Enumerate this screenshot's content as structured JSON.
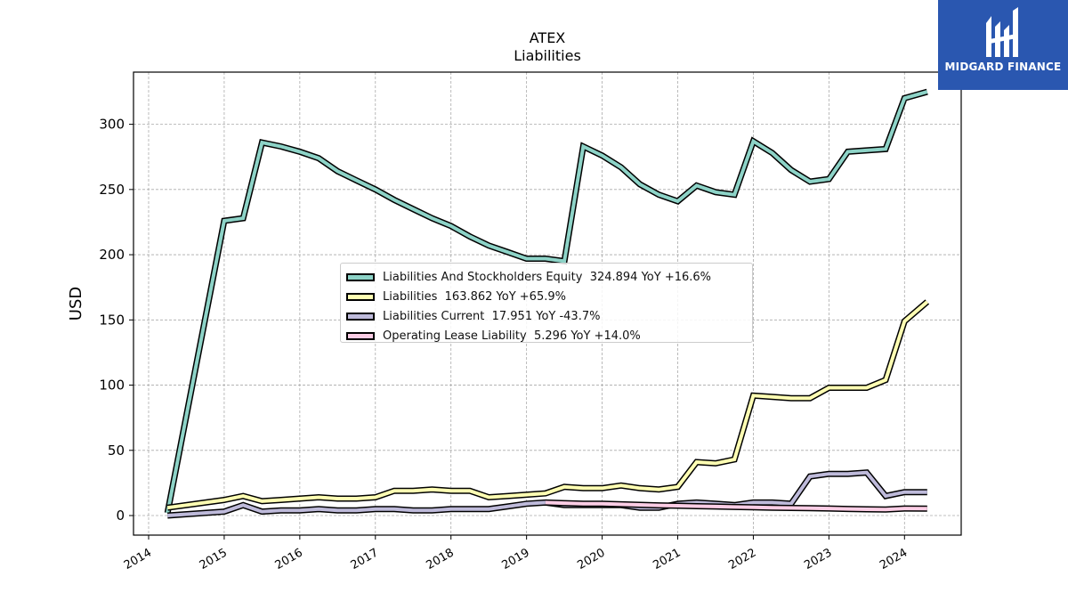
{
  "logo": {
    "text": "MIDGARD FINANCE",
    "color": "#2a57b0"
  },
  "chart_data": {
    "type": "line",
    "title": "ATEX",
    "subtitle": "Liabilities",
    "ylabel": "USD",
    "xlabel": "",
    "xlim": [
      2013.8,
      2024.75
    ],
    "ylim": [
      -15,
      340
    ],
    "yticks": [
      0,
      50,
      100,
      150,
      200,
      250,
      300
    ],
    "xticks": [
      "2014",
      "2015",
      "2016",
      "2017",
      "2018",
      "2019",
      "2020",
      "2021",
      "2022",
      "2023",
      "2024"
    ],
    "grid": true,
    "legend_position": "center",
    "series": [
      {
        "name": "Liabilities And Stockholders Equity",
        "legend_label": "Liabilities And Stockholders Equity  324.894 YoY +16.6%",
        "color": "#8dd3c7",
        "x": [
          2014.25,
          2015.0,
          2015.25,
          2015.5,
          2015.75,
          2016.0,
          2016.25,
          2016.5,
          2016.75,
          2017.0,
          2017.25,
          2017.5,
          2017.75,
          2018.0,
          2018.25,
          2018.5,
          2018.75,
          2019.0,
          2019.25,
          2019.5,
          2019.75,
          2020.0,
          2020.25,
          2020.5,
          2020.75,
          2021.0,
          2021.25,
          2021.5,
          2021.75,
          2022.0,
          2022.25,
          2022.5,
          2022.75,
          2023.0,
          2023.25,
          2023.5,
          2023.75,
          2024.0,
          2024.3
        ],
        "y": [
          2,
          226,
          228,
          286,
          283,
          279,
          274,
          264,
          257,
          250,
          242,
          235,
          228,
          222,
          214,
          207,
          202,
          197,
          197,
          195,
          283,
          276,
          267,
          254,
          246,
          241,
          253,
          248,
          246,
          287,
          278,
          265,
          256,
          258,
          279,
          280,
          281,
          320,
          324.894
        ]
      },
      {
        "name": "Liabilities",
        "legend_label": "Liabilities  163.862 YoY +65.9%",
        "color": "#ffffb3",
        "x": [
          2014.25,
          2015.0,
          2015.25,
          2015.5,
          2015.75,
          2016.0,
          2016.25,
          2016.5,
          2016.75,
          2017.0,
          2017.25,
          2017.5,
          2017.75,
          2018.0,
          2018.25,
          2018.5,
          2018.75,
          2019.0,
          2019.25,
          2019.5,
          2019.75,
          2020.0,
          2020.25,
          2020.5,
          2020.75,
          2021.0,
          2021.25,
          2021.5,
          2021.75,
          2022.0,
          2022.25,
          2022.5,
          2022.75,
          2023.0,
          2023.25,
          2023.5,
          2023.75,
          2024.0,
          2024.3
        ],
        "y": [
          6,
          12,
          15,
          11,
          12,
          13,
          14,
          13,
          13,
          14,
          19,
          19,
          20,
          19,
          19,
          14,
          15,
          16,
          17,
          22,
          21,
          21,
          23,
          21,
          20,
          22,
          41,
          40,
          43,
          92,
          91,
          90,
          90,
          98,
          98,
          98,
          104,
          149,
          163.862
        ]
      },
      {
        "name": "Liabilities Current",
        "legend_label": "Liabilities Current  17.951 YoY -43.7%",
        "color": "#bebada",
        "x": [
          2014.25,
          2015.0,
          2015.25,
          2015.5,
          2015.75,
          2016.0,
          2016.25,
          2016.5,
          2016.75,
          2017.0,
          2017.25,
          2017.5,
          2017.75,
          2018.0,
          2018.25,
          2018.5,
          2018.75,
          2019.0,
          2019.25,
          2019.5,
          2019.75,
          2020.0,
          2020.25,
          2020.5,
          2020.75,
          2021.0,
          2021.25,
          2021.5,
          2021.75,
          2022.0,
          2022.25,
          2022.5,
          2022.75,
          2023.0,
          2023.25,
          2023.5,
          2023.75,
          2024.0,
          2024.3
        ],
        "y": [
          0,
          3,
          8,
          3,
          4,
          4,
          5,
          4,
          4,
          5,
          5,
          4,
          4,
          5,
          5,
          5,
          7,
          9,
          10,
          8,
          8,
          8,
          8,
          6,
          6,
          9,
          10,
          9,
          8,
          10,
          10,
          9,
          30,
          32,
          32,
          33,
          15,
          18,
          17.951
        ]
      },
      {
        "name": "Operating Lease Liability",
        "legend_label": "Operating Lease Liability  5.296 YoY +14.0%",
        "color": "#fccde5",
        "x": [
          2019.25,
          2019.5,
          2019.75,
          2020.0,
          2020.25,
          2020.5,
          2020.75,
          2021.0,
          2021.25,
          2021.5,
          2021.75,
          2022.0,
          2022.25,
          2022.5,
          2022.75,
          2023.0,
          2023.25,
          2023.5,
          2023.75,
          2024.0,
          2024.3
        ],
        "y": [
          10,
          9.5,
          9,
          9,
          8.6,
          8.2,
          7.8,
          7.5,
          7.2,
          6.9,
          6.6,
          6.3,
          6,
          5.8,
          5.6,
          5.4,
          5.1,
          4.8,
          4.6,
          5.4,
          5.296
        ]
      }
    ]
  }
}
